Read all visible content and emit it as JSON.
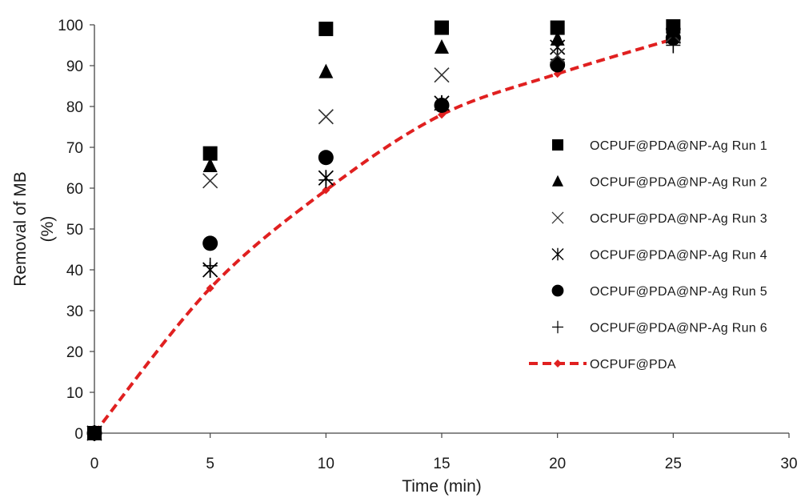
{
  "chart_data": {
    "type": "scatter",
    "xlabel": "Time (min)",
    "ylabel_line1": "Removal of MB",
    "ylabel_line2": "(%)",
    "xlim": [
      0,
      30
    ],
    "ylim": [
      0,
      100
    ],
    "x_ticks": [
      0,
      5,
      10,
      15,
      20,
      25,
      30
    ],
    "y_ticks": [
      0,
      10,
      20,
      30,
      40,
      50,
      60,
      70,
      80,
      90,
      100
    ],
    "grid": false,
    "legend_position": "right",
    "series": [
      {
        "name": "OCPUF@PDA@NP-Ag Run 1",
        "marker": "square",
        "color": "#000000",
        "x": [
          0,
          5,
          10,
          15,
          20,
          25
        ],
        "y": [
          0,
          68.5,
          99,
          99.3,
          99.3,
          99.6
        ]
      },
      {
        "name": "OCPUF@PDA@NP-Ag Run 2",
        "marker": "triangle",
        "color": "#000000",
        "x": [
          0,
          5,
          10,
          15,
          20,
          25
        ],
        "y": [
          0,
          65.5,
          88.5,
          94.5,
          96.5,
          98.5
        ]
      },
      {
        "name": "OCPUF@PDA@NP-Ag Run 3",
        "marker": "x",
        "color": "#333333",
        "x": [
          0,
          5,
          10,
          15,
          20,
          25
        ],
        "y": [
          0,
          61.8,
          77.5,
          87.7,
          92.5,
          97.5
        ]
      },
      {
        "name": "OCPUF@PDA@NP-Ag Run 4",
        "marker": "asterisk",
        "color": "#000000",
        "x": [
          0,
          5,
          10,
          15,
          20,
          25
        ],
        "y": [
          0,
          40,
          62.5,
          80.8,
          94.5,
          97.2
        ]
      },
      {
        "name": "OCPUF@PDA@NP-Ag Run 5",
        "marker": "circle",
        "color": "#000000",
        "x": [
          0,
          5,
          10,
          15,
          20,
          25
        ],
        "y": [
          0,
          46.5,
          67.5,
          80.3,
          90.2,
          96.8
        ]
      },
      {
        "name": "OCPUF@PDA@NP-Ag Run 6",
        "marker": "plus",
        "color": "#000000",
        "x": [
          0,
          5,
          10,
          15,
          20,
          25
        ],
        "y": [
          0,
          41,
          62,
          80.5,
          91.5,
          95
        ]
      },
      {
        "name": "OCPUF@PDA",
        "marker": "diamond-line",
        "color": "#e02020",
        "x": [
          0,
          5,
          10,
          15,
          20,
          25
        ],
        "y": [
          0,
          35.5,
          59.5,
          78,
          88,
          96.5
        ]
      }
    ]
  }
}
